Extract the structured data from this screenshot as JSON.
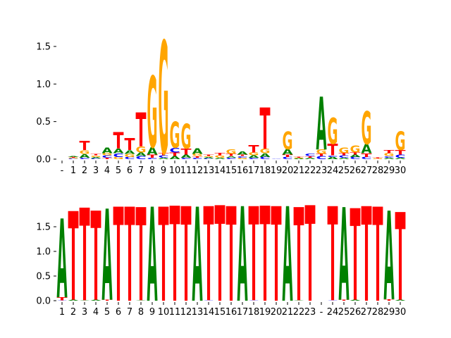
{
  "colors": {
    "A": "#008000",
    "C": "#0000ff",
    "G": "#ffa500",
    "T": "#ff0000",
    "axis": "#000000"
  },
  "chart_data": [
    {
      "type": "sequence-logo",
      "title": "",
      "xlabel": "",
      "ylabel": "",
      "ylim": [
        0,
        1.6
      ],
      "yticks": [
        "0.0",
        "0.5",
        "1.0",
        "1.5"
      ],
      "xtick_labels": [
        "-",
        "1",
        "2",
        "3",
        "4",
        "5",
        "6",
        "7",
        "8",
        "9",
        "10",
        "11",
        "12",
        "13",
        "14",
        "15",
        "16",
        "17",
        "18",
        "19",
        "20",
        "21",
        "22",
        "23",
        "24",
        "25",
        "26",
        "27",
        "28",
        "29",
        "30"
      ],
      "columns": [
        {
          "pos": "-",
          "stack": []
        },
        {
          "pos": "1",
          "stack": [
            [
              "C",
              0.01
            ],
            [
              "G",
              0.01
            ],
            [
              "T",
              0.01
            ],
            [
              "A",
              0.01
            ]
          ]
        },
        {
          "pos": "2",
          "stack": [
            [
              "C",
              0.02
            ],
            [
              "A",
              0.05
            ],
            [
              "G",
              0.05
            ],
            [
              "T",
              0.12
            ]
          ]
        },
        {
          "pos": "3",
          "stack": [
            [
              "C",
              0.01
            ],
            [
              "A",
              0.02
            ],
            [
              "G",
              0.02
            ],
            [
              "T",
              0.02
            ]
          ]
        },
        {
          "pos": "4",
          "stack": [
            [
              "T",
              0.02
            ],
            [
              "C",
              0.03
            ],
            [
              "G",
              0.03
            ],
            [
              "A",
              0.07
            ]
          ]
        },
        {
          "pos": "5",
          "stack": [
            [
              "G",
              0.03
            ],
            [
              "C",
              0.05
            ],
            [
              "A",
              0.06
            ],
            [
              "T",
              0.22
            ]
          ]
        },
        {
          "pos": "6",
          "stack": [
            [
              "C",
              0.03
            ],
            [
              "G",
              0.04
            ],
            [
              "A",
              0.05
            ],
            [
              "T",
              0.16
            ]
          ]
        },
        {
          "pos": "7",
          "stack": [
            [
              "C",
              0.04
            ],
            [
              "A",
              0.05
            ],
            [
              "G",
              0.08
            ],
            [
              "T",
              0.45
            ]
          ]
        },
        {
          "pos": "8",
          "stack": [
            [
              "C",
              0.02
            ],
            [
              "T",
              0.04
            ],
            [
              "A",
              0.1
            ],
            [
              "G",
              0.95
            ]
          ]
        },
        {
          "pos": "9",
          "stack": [
            [
              "A",
              0.02
            ],
            [
              "C",
              0.03
            ],
            [
              "T",
              0.03
            ],
            [
              "G",
              1.5
            ]
          ]
        },
        {
          "pos": "10",
          "stack": [
            [
              "A",
              0.04
            ],
            [
              "T",
              0.05
            ],
            [
              "C",
              0.06
            ],
            [
              "G",
              0.35
            ]
          ]
        },
        {
          "pos": "11",
          "stack": [
            [
              "C",
              0.02
            ],
            [
              "A",
              0.04
            ],
            [
              "T",
              0.08
            ],
            [
              "G",
              0.33
            ]
          ]
        },
        {
          "pos": "12",
          "stack": [
            [
              "C",
              0.02
            ],
            [
              "T",
              0.02
            ],
            [
              "G",
              0.03
            ],
            [
              "A",
              0.07
            ]
          ]
        },
        {
          "pos": "13",
          "stack": [
            [
              "C",
              0.01
            ],
            [
              "A",
              0.02
            ],
            [
              "G",
              0.01
            ],
            [
              "T",
              0.02
            ]
          ]
        },
        {
          "pos": "14",
          "stack": [
            [
              "A",
              0.02
            ],
            [
              "G",
              0.03
            ],
            [
              "T",
              0.03
            ]
          ]
        },
        {
          "pos": "15",
          "stack": [
            [
              "C",
              0.02
            ],
            [
              "A",
              0.02
            ],
            [
              "T",
              0.03
            ],
            [
              "G",
              0.06
            ]
          ]
        },
        {
          "pos": "16",
          "stack": [
            [
              "G",
              0.02
            ],
            [
              "C",
              0.02
            ],
            [
              "T",
              0.02
            ],
            [
              "A",
              0.04
            ]
          ]
        },
        {
          "pos": "17",
          "stack": [
            [
              "C",
              0.02
            ],
            [
              "A",
              0.03
            ],
            [
              "G",
              0.04
            ],
            [
              "T",
              0.1
            ]
          ]
        },
        {
          "pos": "18",
          "stack": [
            [
              "C",
              0.03
            ],
            [
              "A",
              0.05
            ],
            [
              "G",
              0.06
            ],
            [
              "T",
              0.55
            ]
          ]
        },
        {
          "pos": "19",
          "stack": [
            [
              "C",
              0.005
            ]
          ]
        },
        {
          "pos": "20",
          "stack": [
            [
              "C",
              0.03
            ],
            [
              "T",
              0.03
            ],
            [
              "A",
              0.07
            ],
            [
              "G",
              0.24
            ]
          ]
        },
        {
          "pos": "21",
          "stack": [
            [
              "A",
              0.01
            ],
            [
              "G",
              0.01
            ],
            [
              "T",
              0.01
            ]
          ]
        },
        {
          "pos": "22",
          "stack": [
            [
              "A",
              0.02
            ],
            [
              "T",
              0.02
            ],
            [
              "C",
              0.03
            ]
          ]
        },
        {
          "pos": "23",
          "stack": [
            [
              "C",
              0.04
            ],
            [
              "T",
              0.03
            ],
            [
              "G",
              0.06
            ],
            [
              "A",
              0.7
            ]
          ]
        },
        {
          "pos": "24",
          "stack": [
            [
              "A",
              0.03
            ],
            [
              "C",
              0.02
            ],
            [
              "T",
              0.15
            ],
            [
              "G",
              0.35
            ]
          ]
        },
        {
          "pos": "25",
          "stack": [
            [
              "A",
              0.02
            ],
            [
              "C",
              0.03
            ],
            [
              "T",
              0.03
            ],
            [
              "G",
              0.07
            ]
          ]
        },
        {
          "pos": "26",
          "stack": [
            [
              "C",
              0.03
            ],
            [
              "A",
              0.03
            ],
            [
              "T",
              0.03
            ],
            [
              "G",
              0.09
            ]
          ]
        },
        {
          "pos": "27",
          "stack": [
            [
              "C",
              0.03
            ],
            [
              "T",
              0.05
            ],
            [
              "A",
              0.12
            ],
            [
              "G",
              0.44
            ]
          ]
        },
        {
          "pos": "28",
          "stack": [
            [
              "G",
              0.01
            ],
            [
              "T",
              0.01
            ]
          ]
        },
        {
          "pos": "29",
          "stack": [
            [
              "A",
              0.02
            ],
            [
              "C",
              0.02
            ],
            [
              "G",
              0.04
            ],
            [
              "T",
              0.04
            ]
          ]
        },
        {
          "pos": "30",
          "stack": [
            [
              "A",
              0.02
            ],
            [
              "C",
              0.04
            ],
            [
              "T",
              0.06
            ],
            [
              "G",
              0.25
            ]
          ]
        }
      ]
    },
    {
      "type": "sequence-logo",
      "title": "",
      "xlabel": "",
      "ylabel": "",
      "ylim": [
        0,
        1.95
      ],
      "yticks": [
        "0.0",
        "0.5",
        "1.0",
        "1.5"
      ],
      "xtick_labels": [
        "1",
        "2",
        "3",
        "4",
        "5",
        "6",
        "7",
        "8",
        "9",
        "10",
        "11",
        "12",
        "13",
        "14",
        "15",
        "16",
        "17",
        "18",
        "19",
        "20",
        "21",
        "22",
        "23",
        "-",
        "24",
        "25",
        "26",
        "27",
        "28",
        "29",
        "30"
      ],
      "columns": [
        {
          "pos": "1",
          "stack": [
            [
              "C",
              0.01
            ],
            [
              "T",
              0.06
            ],
            [
              "A",
              1.6
            ]
          ]
        },
        {
          "pos": "2",
          "stack": [
            [
              "A",
              0.02
            ],
            [
              "T",
              1.8
            ]
          ]
        },
        {
          "pos": "3",
          "stack": [
            [
              "A",
              0.01
            ],
            [
              "T",
              1.88
            ]
          ]
        },
        {
          "pos": "4",
          "stack": [
            [
              "A",
              0.02
            ],
            [
              "T",
              1.81
            ]
          ]
        },
        {
          "pos": "5",
          "stack": [
            [
              "T",
              0.02
            ],
            [
              "A",
              1.85
            ]
          ]
        },
        {
          "pos": "6",
          "stack": [
            [
              "T",
              1.91
            ]
          ]
        },
        {
          "pos": "7",
          "stack": [
            [
              "T",
              1.91
            ]
          ]
        },
        {
          "pos": "8",
          "stack": [
            [
              "A",
              0.01
            ],
            [
              "T",
              1.89
            ]
          ]
        },
        {
          "pos": "9",
          "stack": [
            [
              "A",
              1.91
            ]
          ]
        },
        {
          "pos": "10",
          "stack": [
            [
              "T",
              1.91
            ]
          ]
        },
        {
          "pos": "11",
          "stack": [
            [
              "T",
              1.93
            ]
          ]
        },
        {
          "pos": "12",
          "stack": [
            [
              "T",
              1.92
            ]
          ]
        },
        {
          "pos": "13",
          "stack": [
            [
              "A",
              1.91
            ]
          ]
        },
        {
          "pos": "14",
          "stack": [
            [
              "C",
              0.01
            ],
            [
              "T",
              1.91
            ]
          ]
        },
        {
          "pos": "15",
          "stack": [
            [
              "T",
              1.94
            ]
          ]
        },
        {
          "pos": "16",
          "stack": [
            [
              "T",
              1.92
            ]
          ]
        },
        {
          "pos": "17",
          "stack": [
            [
              "A",
              1.92
            ]
          ]
        },
        {
          "pos": "18",
          "stack": [
            [
              "C",
              0.01
            ],
            [
              "T",
              1.91
            ]
          ]
        },
        {
          "pos": "19",
          "stack": [
            [
              "T",
              1.93
            ]
          ]
        },
        {
          "pos": "20",
          "stack": [
            [
              "T",
              1.92
            ]
          ]
        },
        {
          "pos": "21",
          "stack": [
            [
              "A",
              1.92
            ]
          ]
        },
        {
          "pos": "22",
          "stack": [
            [
              "A",
              0.01
            ],
            [
              "T",
              1.89
            ]
          ]
        },
        {
          "pos": "23",
          "stack": [
            [
              "T",
              1.94
            ]
          ]
        },
        {
          "pos": "-",
          "stack": []
        },
        {
          "pos": "24",
          "stack": [
            [
              "C",
              0.01
            ],
            [
              "T",
              1.91
            ]
          ]
        },
        {
          "pos": "25",
          "stack": [
            [
              "T",
              0.02
            ],
            [
              "A",
              1.88
            ]
          ]
        },
        {
          "pos": "26",
          "stack": [
            [
              "A",
              0.02
            ],
            [
              "T",
              1.86
            ]
          ]
        },
        {
          "pos": "27",
          "stack": [
            [
              "T",
              1.92
            ]
          ]
        },
        {
          "pos": "28",
          "stack": [
            [
              "T",
              1.91
            ]
          ]
        },
        {
          "pos": "29",
          "stack": [
            [
              "T",
              0.03
            ],
            [
              "A",
              1.8
            ]
          ]
        },
        {
          "pos": "30",
          "stack": [
            [
              "A",
              0.02
            ],
            [
              "T",
              1.78
            ]
          ]
        }
      ]
    }
  ]
}
